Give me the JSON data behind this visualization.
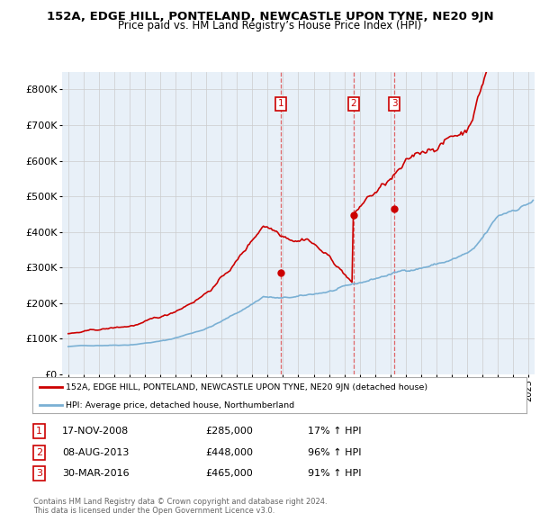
{
  "title": "152A, EDGE HILL, PONTELAND, NEWCASTLE UPON TYNE, NE20 9JN",
  "subtitle": "Price paid vs. HM Land Registry’s House Price Index (HPI)",
  "hpi_color": "#7ab0d4",
  "price_color": "#cc0000",
  "sale_line_color": "#e07070",
  "background_color": "#ffffff",
  "chart_bg_color": "#e8f0f8",
  "grid_color": "#cccccc",
  "ylim": [
    0,
    850000
  ],
  "yticks": [
    0,
    100000,
    200000,
    300000,
    400000,
    500000,
    600000,
    700000,
    800000
  ],
  "ytick_labels": [
    "£0",
    "£100K",
    "£200K",
    "£300K",
    "£400K",
    "£500K",
    "£600K",
    "£700K",
    "£800K"
  ],
  "xlim_start": 1994.6,
  "xlim_end": 2025.4,
  "legend_label_red": "152A, EDGE HILL, PONTELAND, NEWCASTLE UPON TYNE, NE20 9JN (detached house)",
  "legend_label_blue": "HPI: Average price, detached house, Northumberland",
  "sale1_date": 2008.88,
  "sale1_price": 285000,
  "sale1_label": "1",
  "sale1_text": "17-NOV-2008",
  "sale1_amount": "£285,000",
  "sale1_pct": "17% ↑ HPI",
  "sale2_date": 2013.59,
  "sale2_price": 448000,
  "sale2_label": "2",
  "sale2_text": "08-AUG-2013",
  "sale2_amount": "£448,000",
  "sale2_pct": "96% ↑ HPI",
  "sale3_date": 2016.25,
  "sale3_price": 465000,
  "sale3_label": "3",
  "sale3_text": "30-MAR-2016",
  "sale3_amount": "£465,000",
  "sale3_pct": "91% ↑ HPI",
  "footer1": "Contains HM Land Registry data © Crown copyright and database right 2024.",
  "footer2": "This data is licensed under the Open Government Licence v3.0."
}
